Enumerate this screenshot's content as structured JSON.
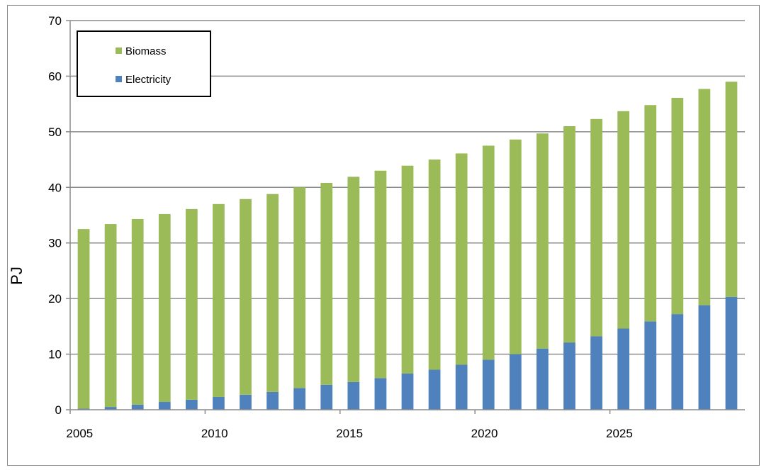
{
  "chart_data": {
    "type": "bar",
    "stacked": true,
    "ylabel": "PJ",
    "ylim": [
      0,
      70
    ],
    "yticks": [
      0,
      10,
      20,
      30,
      40,
      50,
      60,
      70
    ],
    "xtick_labels": [
      "2005",
      "2010",
      "2015",
      "2020",
      "2025"
    ],
    "grid": true,
    "legend_position": "top-left",
    "categories": [
      2005,
      2006,
      2007,
      2008,
      2009,
      2010,
      2011,
      2012,
      2013,
      2014,
      2015,
      2016,
      2017,
      2018,
      2019,
      2020,
      2021,
      2022,
      2023,
      2024,
      2025,
      2026,
      2027,
      2028,
      2029
    ],
    "series": [
      {
        "name": "Electricity",
        "color": "#4f81bd",
        "values": [
          0.2,
          0.5,
          0.9,
          1.4,
          1.8,
          2.3,
          2.7,
          3.2,
          3.9,
          4.5,
          5.0,
          5.7,
          6.5,
          7.2,
          8.1,
          9.0,
          10.0,
          11.0,
          12.1,
          13.2,
          14.6,
          15.9,
          17.2,
          18.8,
          20.3
        ]
      },
      {
        "name": "Biomass",
        "color": "#9bbb59",
        "values": [
          32.3,
          32.9,
          33.4,
          33.8,
          34.3,
          34.7,
          35.2,
          35.6,
          36.1,
          36.3,
          36.9,
          37.3,
          37.4,
          37.8,
          38.0,
          38.5,
          38.6,
          38.7,
          38.9,
          39.1,
          39.1,
          38.9,
          38.9,
          38.9,
          38.7
        ]
      }
    ]
  }
}
